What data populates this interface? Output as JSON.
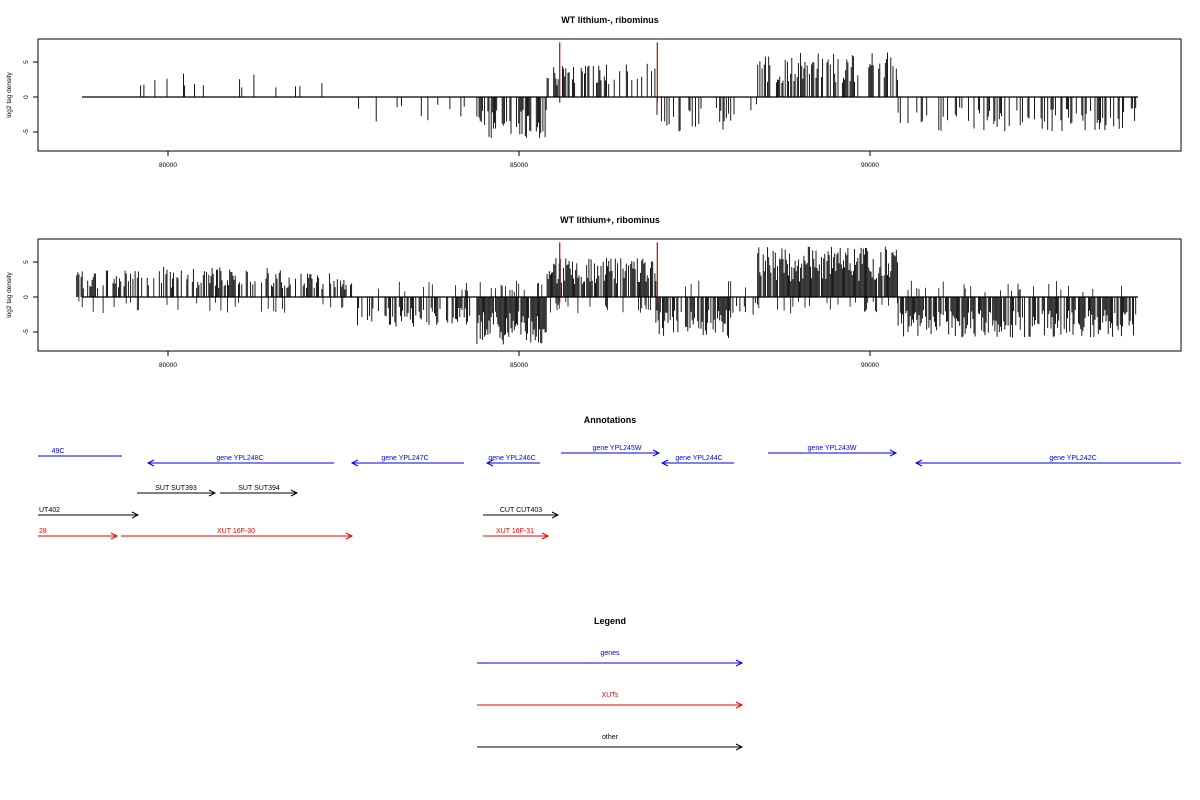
{
  "chart_data": [
    {
      "type": "bar",
      "title": "WT lithium-, ribominus",
      "xlabel": "",
      "ylabel": "log2 tag density",
      "xlim": [
        78300,
        94500
      ],
      "ylim": [
        -7.5,
        8
      ],
      "xticks": [
        80000,
        85000,
        90000
      ],
      "yticks": [
        5,
        0,
        -5
      ],
      "density": "sparse",
      "series": [
        {
          "color": "#000000",
          "values": "per-position log2 tag density, positive/negative stranded (dense barcode)"
        },
        {
          "color": "#cc0000",
          "x": [
            85580,
            86970
          ],
          "y": [
            7.8,
            7.8
          ]
        }
      ]
    },
    {
      "type": "bar",
      "title": "WT lithium+, ribominus",
      "xlabel": "",
      "ylabel": "log2 tag density",
      "xlim": [
        78300,
        94500
      ],
      "ylim": [
        -7.5,
        8
      ],
      "xticks": [
        80000,
        85000,
        90000
      ],
      "yticks": [
        5,
        0,
        -5
      ],
      "density": "dense",
      "series": [
        {
          "color": "#000000",
          "values": "per-position log2 tag density, positive/negative stranded (dense barcode)"
        },
        {
          "color": "#cc0000",
          "x": [
            85580,
            86970
          ],
          "y": [
            7.8,
            7.8
          ]
        }
      ]
    }
  ],
  "annotations": {
    "title": "Annotations",
    "colors": {
      "genes": "#0000ee",
      "xuts": "#ee0000",
      "other": "#000000"
    },
    "items": [
      {
        "label": "49C",
        "kind": "genes",
        "strand": "-",
        "row": 0
      },
      {
        "label": "gene YPL248C",
        "kind": "genes",
        "strand": "-",
        "row": 0
      },
      {
        "label": "gene YPL247C",
        "kind": "genes",
        "strand": "-",
        "row": 0
      },
      {
        "label": "gene YPL246C",
        "kind": "genes",
        "strand": "-",
        "row": 0
      },
      {
        "label": "gene YPL245W",
        "kind": "genes",
        "strand": "+",
        "row": 0
      },
      {
        "label": "gene YPL244C",
        "kind": "genes",
        "strand": "-",
        "row": 0
      },
      {
        "label": "gene YPL243W",
        "kind": "genes",
        "strand": "+",
        "row": 0
      },
      {
        "label": "gene YPL242C",
        "kind": "genes",
        "strand": "-",
        "row": 0
      },
      {
        "label": "SUT SUT393",
        "kind": "other",
        "strand": "+",
        "row": 1
      },
      {
        "label": "SUT SUT394",
        "kind": "other",
        "strand": "+",
        "row": 1
      },
      {
        "label": "UT402",
        "kind": "other",
        "strand": "+",
        "row": 2
      },
      {
        "label": "CUT CUT403",
        "kind": "other",
        "strand": "+",
        "row": 2
      },
      {
        "label": "28",
        "kind": "xuts",
        "strand": "+",
        "row": 3
      },
      {
        "label": "XUT 16F-30",
        "kind": "xuts",
        "strand": "+",
        "row": 3
      },
      {
        "label": "XUT 16F-31",
        "kind": "xuts",
        "strand": "+",
        "row": 3
      }
    ]
  },
  "legend": {
    "title": "Legend",
    "items": [
      {
        "label": "genes",
        "color": "#0000ee"
      },
      {
        "label": "XUTs",
        "color": "#ee0000"
      },
      {
        "label": "other",
        "color": "#000000"
      }
    ]
  }
}
